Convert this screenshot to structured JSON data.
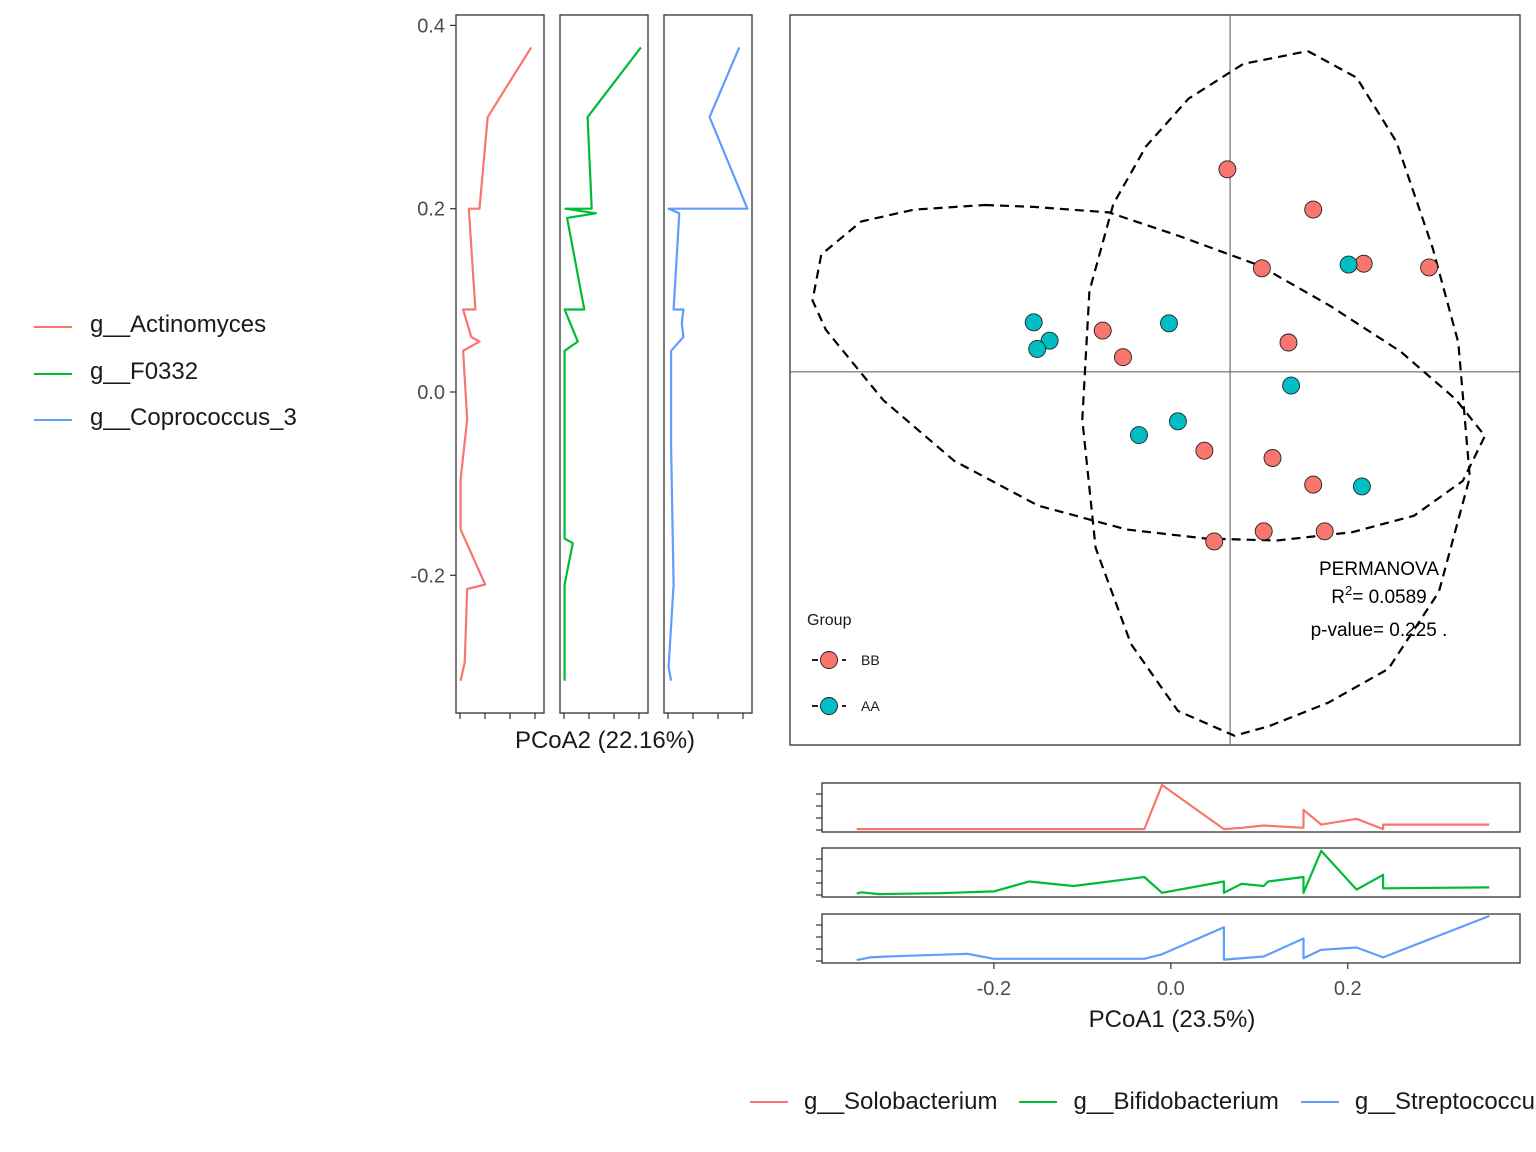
{
  "chart_data": [
    {
      "type": "scatter",
      "panel": "main",
      "xlabel": "PCoA1 (23.5%)",
      "ylabel": "PCoA2 (22.16%)",
      "xlim": [
        -0.42,
        0.39
      ],
      "ylim": [
        -0.385,
        0.41
      ],
      "xticks": [
        -0.2,
        0.0,
        0.2
      ],
      "xtick_labels": [
        "-0.2",
        "0.0",
        "0.2"
      ],
      "yticks": [
        0.4,
        0.2,
        0.0,
        -0.2
      ],
      "ytick_labels": [
        "0.4",
        "0.2",
        "0.0",
        "-0.2"
      ],
      "reference_lines": {
        "x": 0.067,
        "y": 0.022
      },
      "legend": {
        "title": "Group",
        "placement": "bottom-left",
        "entries": [
          {
            "label": "BB",
            "color": "#F8766D"
          },
          {
            "label": "AA",
            "color": "#00BFC4"
          }
        ]
      },
      "annotation": {
        "title": "PERMANOVA",
        "r2_label": "R",
        "r2_sup": "2",
        "r2_value": "= 0.0589",
        "p_text": "p-value= 0.225 ."
      },
      "series": [
        {
          "name": "BB",
          "color": "#F8766D",
          "points": [
            [
              0.064,
              0.243
            ],
            [
              0.161,
              0.199
            ],
            [
              0.103,
              0.135
            ],
            [
              0.218,
              0.14
            ],
            [
              0.292,
              0.136
            ],
            [
              0.133,
              0.054
            ],
            [
              -0.077,
              0.067
            ],
            [
              -0.054,
              0.038
            ],
            [
              0.038,
              -0.064
            ],
            [
              0.115,
              -0.072
            ],
            [
              0.161,
              -0.101
            ],
            [
              0.105,
              -0.152
            ],
            [
              0.174,
              -0.152
            ],
            [
              0.049,
              -0.163
            ]
          ]
        },
        {
          "name": "AA",
          "color": "#00BFC4",
          "points": [
            [
              -0.155,
              0.076
            ],
            [
              -0.137,
              0.056
            ],
            [
              -0.151,
              0.047
            ],
            [
              -0.002,
              0.075
            ],
            [
              0.201,
              0.139
            ],
            [
              0.136,
              0.007
            ],
            [
              0.008,
              -0.032
            ],
            [
              -0.036,
              -0.047
            ],
            [
              0.216,
              -0.103
            ]
          ]
        }
      ],
      "ellipses": [
        {
          "group": "BB",
          "style": "dashed",
          "path": [
            [
              0.155,
              0.372
            ],
            [
              0.21,
              0.343
            ],
            [
              0.255,
              0.273
            ],
            [
              0.296,
              0.157
            ],
            [
              0.325,
              0.054
            ],
            [
              0.338,
              -0.093
            ],
            [
              0.303,
              -0.218
            ],
            [
              0.246,
              -0.302
            ],
            [
              0.178,
              -0.339
            ],
            [
              0.11,
              -0.365
            ],
            [
              0.072,
              -0.375
            ],
            [
              0.008,
              -0.348
            ],
            [
              -0.045,
              -0.275
            ],
            [
              -0.085,
              -0.17
            ],
            [
              -0.1,
              -0.03
            ],
            [
              -0.092,
              0.11
            ],
            [
              -0.065,
              0.205
            ],
            [
              -0.028,
              0.268
            ],
            [
              0.02,
              0.32
            ],
            [
              0.082,
              0.358
            ],
            [
              0.155,
              0.372
            ]
          ]
        },
        {
          "group": "AA",
          "style": "dashed",
          "path": [
            [
              -0.21,
              0.204
            ],
            [
              -0.155,
              0.202
            ],
            [
              -0.07,
              0.196
            ],
            [
              0.01,
              0.17
            ],
            [
              0.1,
              0.138
            ],
            [
              0.18,
              0.094
            ],
            [
              0.26,
              0.044
            ],
            [
              0.322,
              -0.008
            ],
            [
              0.355,
              -0.048
            ],
            [
              0.33,
              -0.097
            ],
            [
              0.275,
              -0.135
            ],
            [
              0.205,
              -0.153
            ],
            [
              0.12,
              -0.162
            ],
            [
              0.04,
              -0.16
            ],
            [
              -0.05,
              -0.15
            ],
            [
              -0.15,
              -0.124
            ],
            [
              -0.245,
              -0.075
            ],
            [
              -0.325,
              -0.009
            ],
            [
              -0.39,
              0.068
            ],
            [
              -0.405,
              0.1
            ],
            [
              -0.395,
              0.15
            ],
            [
              -0.35,
              0.186
            ],
            [
              -0.29,
              0.199
            ],
            [
              -0.21,
              0.204
            ]
          ]
        }
      ]
    },
    {
      "type": "line",
      "panel": "left-margin",
      "orientation": "vertical",
      "xlabel": "PCoA2 (22.16%)",
      "series": [
        {
          "name": "g__Actinomyces",
          "color": "#F8766D",
          "points": [
            [
              0.376,
              0.88
            ],
            [
              0.3,
              0.35
            ],
            [
              0.2,
              0.25
            ],
            [
              0.2,
              0.12
            ],
            [
              0.09,
              0.2
            ],
            [
              0.09,
              0.05
            ],
            [
              0.06,
              0.15
            ],
            [
              0.055,
              0.25
            ],
            [
              0.045,
              0.05
            ],
            [
              -0.03,
              0.1
            ],
            [
              -0.095,
              0.02
            ],
            [
              -0.15,
              0.02
            ],
            [
              -0.17,
              0.12
            ],
            [
              -0.21,
              0.32
            ],
            [
              -0.215,
              0.1
            ],
            [
              -0.295,
              0.07
            ],
            [
              -0.315,
              0.02
            ]
          ]
        },
        {
          "name": "g__F0332",
          "color": "#00BA38",
          "points": [
            [
              0.376,
              0.95
            ],
            [
              0.3,
              0.3
            ],
            [
              0.2,
              0.35
            ],
            [
              0.2,
              0.03
            ],
            [
              0.195,
              0.4
            ],
            [
              0.19,
              0.05
            ],
            [
              0.09,
              0.26
            ],
            [
              0.09,
              0.02
            ],
            [
              0.055,
              0.18
            ],
            [
              0.045,
              0.02
            ],
            [
              -0.16,
              0.02
            ],
            [
              -0.165,
              0.12
            ],
            [
              -0.21,
              0.02
            ],
            [
              -0.315,
              0.02
            ]
          ]
        },
        {
          "name": "g__Coprococcus_3",
          "color": "#619CFF",
          "points": [
            [
              0.376,
              0.88
            ],
            [
              0.3,
              0.52
            ],
            [
              0.2,
              0.98
            ],
            [
              0.2,
              0.02
            ],
            [
              0.195,
              0.15
            ],
            [
              0.09,
              0.08
            ],
            [
              0.09,
              0.2
            ],
            [
              0.075,
              0.18
            ],
            [
              0.06,
              0.2
            ],
            [
              0.045,
              0.05
            ],
            [
              -0.06,
              0.05
            ],
            [
              -0.21,
              0.08
            ],
            [
              -0.3,
              0.02
            ],
            [
              -0.315,
              0.05
            ]
          ]
        }
      ]
    },
    {
      "type": "line",
      "panel": "bottom-margin",
      "orientation": "horizontal",
      "xlabel": "PCoA1 (23.5%)",
      "series": [
        {
          "name": "g__Solobacterium",
          "color": "#F8766D",
          "points": [
            [
              -0.355,
              0.02
            ],
            [
              -0.03,
              0.02
            ],
            [
              -0.01,
              1.0
            ],
            [
              0.06,
              0.02
            ],
            [
              0.08,
              0.05
            ],
            [
              0.105,
              0.1
            ],
            [
              0.15,
              0.05
            ],
            [
              0.15,
              0.45
            ],
            [
              0.17,
              0.12
            ],
            [
              0.21,
              0.25
            ],
            [
              0.24,
              0.02
            ],
            [
              0.24,
              0.12
            ],
            [
              0.36,
              0.12
            ]
          ]
        },
        {
          "name": "g__Bifidobacterium",
          "color": "#00BA38",
          "points": [
            [
              -0.355,
              0.03
            ],
            [
              -0.35,
              0.06
            ],
            [
              -0.33,
              0.02
            ],
            [
              -0.26,
              0.04
            ],
            [
              -0.2,
              0.08
            ],
            [
              -0.16,
              0.3
            ],
            [
              -0.11,
              0.2
            ],
            [
              -0.05,
              0.35
            ],
            [
              -0.03,
              0.4
            ],
            [
              -0.01,
              0.05
            ],
            [
              0.06,
              0.3
            ],
            [
              0.06,
              0.05
            ],
            [
              0.08,
              0.25
            ],
            [
              0.105,
              0.2
            ],
            [
              0.11,
              0.3
            ],
            [
              0.15,
              0.4
            ],
            [
              0.15,
              0.05
            ],
            [
              0.17,
              0.98
            ],
            [
              0.21,
              0.12
            ],
            [
              0.24,
              0.45
            ],
            [
              0.24,
              0.15
            ],
            [
              0.36,
              0.17
            ]
          ]
        },
        {
          "name": "g__Streptococcus",
          "color": "#619CFF",
          "points": [
            [
              -0.355,
              0.02
            ],
            [
              -0.34,
              0.08
            ],
            [
              -0.32,
              0.1
            ],
            [
              -0.23,
              0.16
            ],
            [
              -0.2,
              0.05
            ],
            [
              -0.03,
              0.05
            ],
            [
              -0.01,
              0.15
            ],
            [
              0.06,
              0.75
            ],
            [
              0.06,
              0.03
            ],
            [
              0.105,
              0.1
            ],
            [
              0.15,
              0.5
            ],
            [
              0.15,
              0.06
            ],
            [
              0.17,
              0.25
            ],
            [
              0.21,
              0.3
            ],
            [
              0.24,
              0.08
            ],
            [
              0.36,
              1.0
            ]
          ]
        }
      ]
    }
  ],
  "legends": {
    "left": [
      {
        "label": "g__Actinomyces",
        "color": "#F8766D"
      },
      {
        "label": "g__F0332",
        "color": "#00BA38"
      },
      {
        "label": "g__Coprococcus_3",
        "color": "#619CFF"
      }
    ],
    "bottom": [
      {
        "label": "g__Solobacterium",
        "color": "#F8766D"
      },
      {
        "label": "g__Bifidobacterium",
        "color": "#00BA38"
      },
      {
        "label": "g__Streptococcus",
        "color": "#619CFF"
      }
    ]
  }
}
